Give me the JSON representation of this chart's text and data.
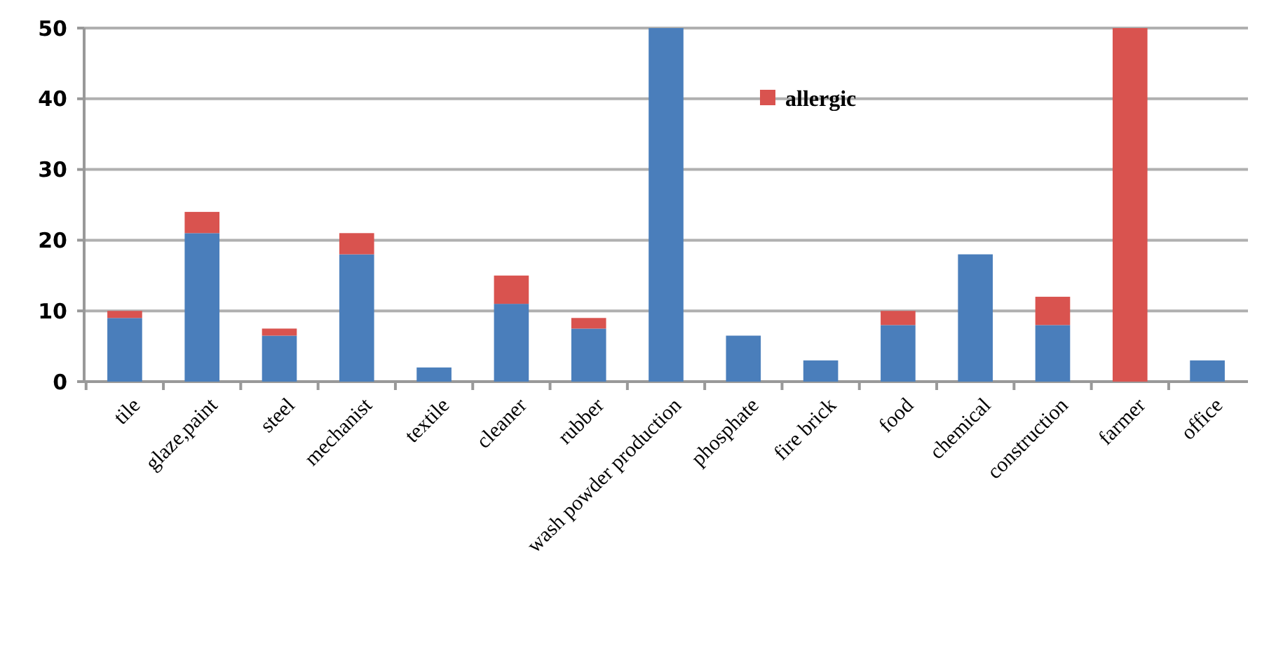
{
  "chart_data": {
    "type": "bar",
    "stacked": true,
    "categories": [
      "tile",
      "glaze,paint",
      "steel",
      "mechanist",
      "textile",
      "cleaner",
      "rubber",
      "wash powder production",
      "phosphate",
      "fire brick",
      "food",
      "chemical",
      "construction",
      "farmer",
      "office"
    ],
    "series": [
      {
        "color": "#4a7ebb",
        "values": [
          9,
          21,
          6.5,
          18,
          2,
          11,
          7.5,
          50,
          6.5,
          3,
          8,
          18,
          8,
          0,
          3
        ]
      },
      {
        "name": "allergic",
        "color": "#d9534f",
        "values": [
          1,
          3,
          1,
          3,
          0,
          4,
          1.5,
          0,
          0,
          0,
          2,
          0,
          4,
          50,
          0
        ]
      }
    ],
    "ylim": [
      0,
      50
    ],
    "yticks": [
      0,
      10,
      20,
      30,
      40,
      50
    ],
    "grid": "y",
    "legend": "top"
  }
}
